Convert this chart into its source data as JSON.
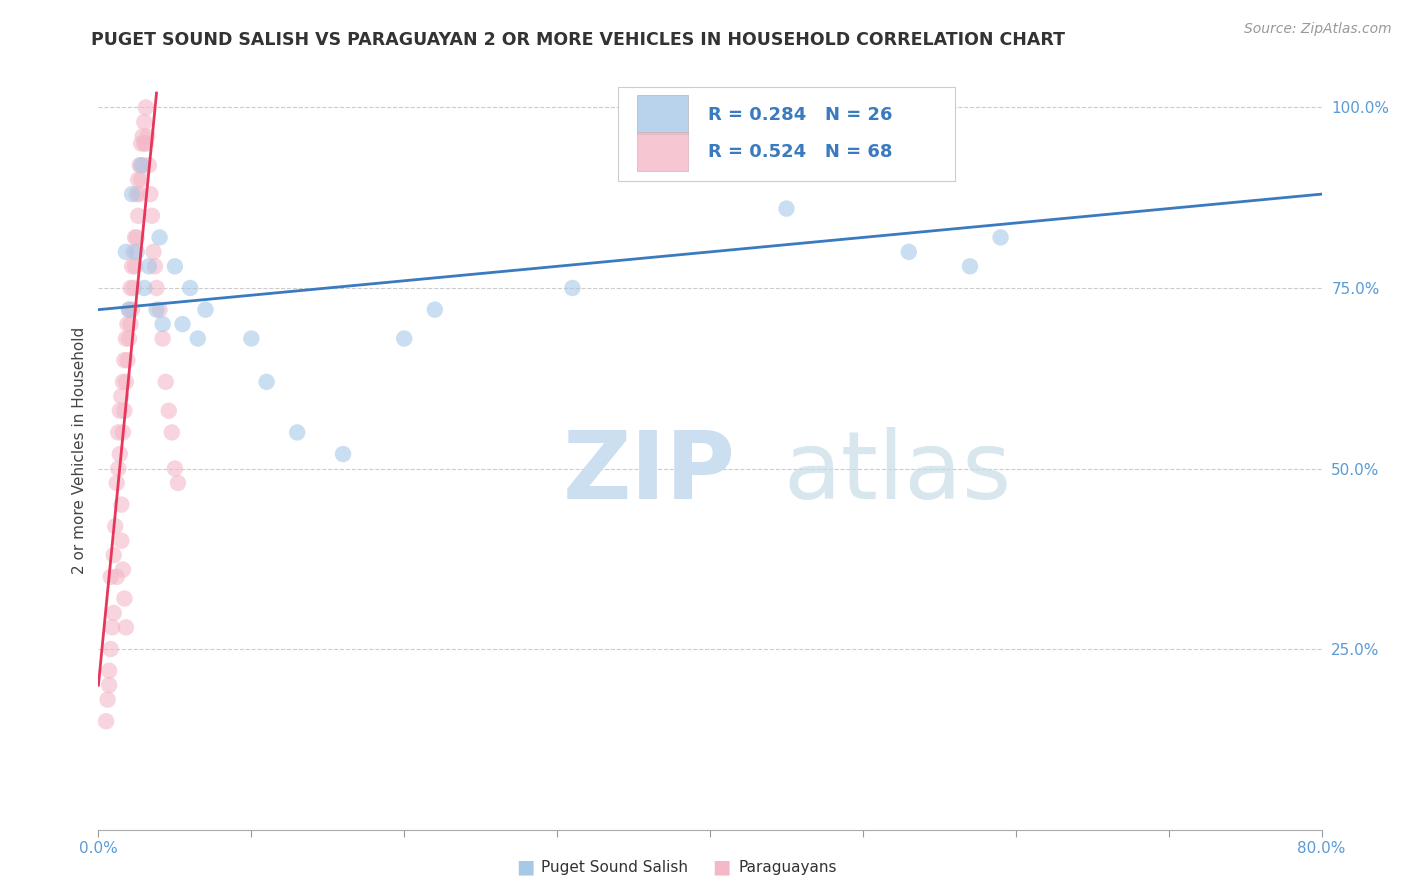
{
  "title": "PUGET SOUND SALISH VS PARAGUAYAN 2 OR MORE VEHICLES IN HOUSEHOLD CORRELATION CHART",
  "source": "Source: ZipAtlas.com",
  "ylabel": "2 or more Vehicles in Household",
  "xlim": [
    0.0,
    0.8
  ],
  "ylim": [
    0.0,
    1.05
  ],
  "ytick_positions": [
    0.25,
    0.5,
    0.75,
    1.0
  ],
  "ytick_labels": [
    "25.0%",
    "50.0%",
    "75.0%",
    "100.0%"
  ],
  "grid_color": "#cccccc",
  "background_color": "#ffffff",
  "legend_r1": "R = 0.284",
  "legend_n1": "N = 26",
  "legend_r2": "R = 0.524",
  "legend_n2": "N = 68",
  "blue_color": "#a8c8e8",
  "pink_color": "#f4b8c8",
  "blue_line_color": "#3a7abf",
  "pink_line_color": "#e8365a",
  "blue_scatter": [
    [
      0.018,
      0.8
    ],
    [
      0.022,
      0.88
    ],
    [
      0.028,
      0.92
    ],
    [
      0.02,
      0.72
    ],
    [
      0.025,
      0.8
    ],
    [
      0.03,
      0.75
    ],
    [
      0.033,
      0.78
    ],
    [
      0.038,
      0.72
    ],
    [
      0.04,
      0.82
    ],
    [
      0.042,
      0.7
    ],
    [
      0.05,
      0.78
    ],
    [
      0.055,
      0.7
    ],
    [
      0.06,
      0.75
    ],
    [
      0.065,
      0.68
    ],
    [
      0.07,
      0.72
    ],
    [
      0.1,
      0.68
    ],
    [
      0.11,
      0.62
    ],
    [
      0.13,
      0.55
    ],
    [
      0.16,
      0.52
    ],
    [
      0.2,
      0.68
    ],
    [
      0.22,
      0.72
    ],
    [
      0.31,
      0.75
    ],
    [
      0.45,
      0.86
    ],
    [
      0.53,
      0.8
    ],
    [
      0.57,
      0.78
    ],
    [
      0.59,
      0.82
    ]
  ],
  "pink_scatter": [
    [
      0.005,
      0.15
    ],
    [
      0.007,
      0.2
    ],
    [
      0.008,
      0.25
    ],
    [
      0.009,
      0.28
    ],
    [
      0.01,
      0.3
    ],
    [
      0.01,
      0.38
    ],
    [
      0.011,
      0.42
    ],
    [
      0.012,
      0.35
    ],
    [
      0.012,
      0.48
    ],
    [
      0.013,
      0.5
    ],
    [
      0.013,
      0.55
    ],
    [
      0.014,
      0.52
    ],
    [
      0.014,
      0.58
    ],
    [
      0.015,
      0.45
    ],
    [
      0.015,
      0.6
    ],
    [
      0.016,
      0.55
    ],
    [
      0.016,
      0.62
    ],
    [
      0.017,
      0.58
    ],
    [
      0.017,
      0.65
    ],
    [
      0.018,
      0.62
    ],
    [
      0.018,
      0.68
    ],
    [
      0.019,
      0.65
    ],
    [
      0.019,
      0.7
    ],
    [
      0.02,
      0.68
    ],
    [
      0.02,
      0.72
    ],
    [
      0.021,
      0.7
    ],
    [
      0.021,
      0.75
    ],
    [
      0.022,
      0.72
    ],
    [
      0.022,
      0.78
    ],
    [
      0.023,
      0.75
    ],
    [
      0.023,
      0.8
    ],
    [
      0.024,
      0.78
    ],
    [
      0.024,
      0.82
    ],
    [
      0.025,
      0.82
    ],
    [
      0.025,
      0.88
    ],
    [
      0.026,
      0.85
    ],
    [
      0.026,
      0.9
    ],
    [
      0.027,
      0.88
    ],
    [
      0.027,
      0.92
    ],
    [
      0.028,
      0.9
    ],
    [
      0.028,
      0.95
    ],
    [
      0.029,
      0.92
    ],
    [
      0.029,
      0.96
    ],
    [
      0.03,
      0.95
    ],
    [
      0.03,
      0.98
    ],
    [
      0.031,
      0.95
    ],
    [
      0.031,
      1.0
    ],
    [
      0.032,
      0.96
    ],
    [
      0.033,
      0.92
    ],
    [
      0.034,
      0.88
    ],
    [
      0.035,
      0.85
    ],
    [
      0.036,
      0.8
    ],
    [
      0.037,
      0.78
    ],
    [
      0.038,
      0.75
    ],
    [
      0.04,
      0.72
    ],
    [
      0.042,
      0.68
    ],
    [
      0.044,
      0.62
    ],
    [
      0.046,
      0.58
    ],
    [
      0.048,
      0.55
    ],
    [
      0.05,
      0.5
    ],
    [
      0.052,
      0.48
    ],
    [
      0.015,
      0.4
    ],
    [
      0.016,
      0.36
    ],
    [
      0.017,
      0.32
    ],
    [
      0.018,
      0.28
    ],
    [
      0.006,
      0.18
    ],
    [
      0.007,
      0.22
    ],
    [
      0.008,
      0.35
    ]
  ],
  "blue_line_x": [
    0.0,
    0.8
  ],
  "blue_line_y": [
    0.72,
    0.88
  ],
  "pink_line_x": [
    0.0,
    0.038
  ],
  "pink_line_y": [
    0.2,
    1.02
  ]
}
